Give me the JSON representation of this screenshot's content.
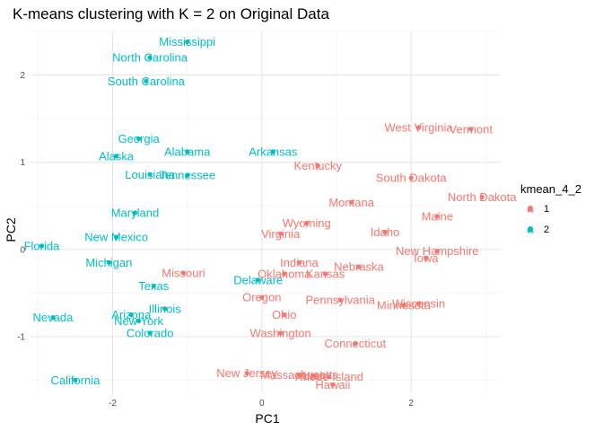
{
  "chart_data": {
    "type": "scatter",
    "title": "K-means clustering with K = 2 on Original Data",
    "xlabel": "PC1",
    "ylabel": "PC2",
    "xlim": [
      -3.1,
      3.2
    ],
    "ylim": [
      -1.65,
      2.5
    ],
    "x_ticks": [
      -2,
      0,
      2
    ],
    "y_ticks": [
      -1,
      0,
      1,
      2
    ],
    "x_tick_labels": [
      "-2",
      "0",
      "2"
    ],
    "y_tick_labels": [
      "-1",
      "0",
      "1",
      "2"
    ],
    "grid": true,
    "legend": {
      "title": "kmean_4_2",
      "position": "right",
      "entries": [
        {
          "label": "1",
          "color": "#F8766D"
        },
        {
          "label": "2",
          "color": "#00BFC4"
        }
      ]
    },
    "colors": {
      "1": "#F8766D",
      "2": "#00BFC4"
    },
    "points": [
      {
        "label": "Mississippi",
        "x": -1.0,
        "y": 2.38,
        "cluster": "2"
      },
      {
        "label": "North Carolina",
        "x": -1.5,
        "y": 2.2,
        "cluster": "2"
      },
      {
        "label": "South Carolina",
        "x": -1.55,
        "y": 1.93,
        "cluster": "2"
      },
      {
        "label": "Georgia",
        "x": -1.65,
        "y": 1.27,
        "cluster": "2"
      },
      {
        "label": "Alabama",
        "x": -1.0,
        "y": 1.12,
        "cluster": "2"
      },
      {
        "label": "Alaska",
        "x": -1.95,
        "y": 1.07,
        "cluster": "2"
      },
      {
        "label": "Arkansas",
        "x": 0.15,
        "y": 1.12,
        "cluster": "2"
      },
      {
        "label": "Louisiana",
        "x": -1.5,
        "y": 0.86,
        "cluster": "2"
      },
      {
        "label": "Tennessee",
        "x": -1.0,
        "y": 0.85,
        "cluster": "2"
      },
      {
        "label": "Maryland",
        "x": -1.7,
        "y": 0.42,
        "cluster": "2"
      },
      {
        "label": "New Mexico",
        "x": -1.95,
        "y": 0.14,
        "cluster": "2"
      },
      {
        "label": "Florida",
        "x": -2.95,
        "y": 0.04,
        "cluster": "2"
      },
      {
        "label": "Michigan",
        "x": -2.05,
        "y": -0.15,
        "cluster": "2"
      },
      {
        "label": "Texas",
        "x": -1.45,
        "y": -0.42,
        "cluster": "2"
      },
      {
        "label": "Delaware",
        "x": -0.05,
        "y": -0.35,
        "cluster": "2"
      },
      {
        "label": "Illinois",
        "x": -1.3,
        "y": -0.68,
        "cluster": "2"
      },
      {
        "label": "Arizona",
        "x": -1.75,
        "y": -0.75,
        "cluster": "2"
      },
      {
        "label": "New York",
        "x": -1.65,
        "y": -0.82,
        "cluster": "2"
      },
      {
        "label": "Nevada",
        "x": -2.8,
        "y": -0.78,
        "cluster": "2"
      },
      {
        "label": "Colorado",
        "x": -1.5,
        "y": -0.96,
        "cluster": "2"
      },
      {
        "label": "California",
        "x": -2.5,
        "y": -1.5,
        "cluster": "2"
      },
      {
        "label": "West Virginia",
        "x": 2.1,
        "y": 1.4,
        "cluster": "1"
      },
      {
        "label": "Vermont",
        "x": 2.8,
        "y": 1.38,
        "cluster": "1"
      },
      {
        "label": "Kentucky",
        "x": 0.75,
        "y": 0.96,
        "cluster": "1"
      },
      {
        "label": "South Dakota",
        "x": 2.0,
        "y": 0.82,
        "cluster": "1"
      },
      {
        "label": "North Dakota",
        "x": 2.95,
        "y": 0.6,
        "cluster": "1"
      },
      {
        "label": "Montana",
        "x": 1.2,
        "y": 0.54,
        "cluster": "1"
      },
      {
        "label": "Maine",
        "x": 2.35,
        "y": 0.38,
        "cluster": "1"
      },
      {
        "label": "Wyoming",
        "x": 0.6,
        "y": 0.3,
        "cluster": "1"
      },
      {
        "label": "Virginia",
        "x": 0.25,
        "y": 0.18,
        "cluster": "1"
      },
      {
        "label": "Idaho",
        "x": 1.65,
        "y": 0.2,
        "cluster": "1"
      },
      {
        "label": "New Hampshire",
        "x": 2.35,
        "y": -0.02,
        "cluster": "1"
      },
      {
        "label": "Iowa",
        "x": 2.2,
        "y": -0.1,
        "cluster": "1"
      },
      {
        "label": "Indiana",
        "x": 0.5,
        "y": -0.15,
        "cluster": "1"
      },
      {
        "label": "Nebraska",
        "x": 1.3,
        "y": -0.2,
        "cluster": "1"
      },
      {
        "label": "Missouri",
        "x": -1.05,
        "y": -0.27,
        "cluster": "1"
      },
      {
        "label": "Oklahoma",
        "x": 0.3,
        "y": -0.28,
        "cluster": "1"
      },
      {
        "label": "Kansas",
        "x": 0.85,
        "y": -0.28,
        "cluster": "1"
      },
      {
        "label": "Oregon",
        "x": 0.0,
        "y": -0.55,
        "cluster": "1"
      },
      {
        "label": "Pennsylvania",
        "x": 1.05,
        "y": -0.58,
        "cluster": "1"
      },
      {
        "label": "Wisconsin",
        "x": 2.1,
        "y": -0.62,
        "cluster": "1"
      },
      {
        "label": "Minnesota",
        "x": 1.9,
        "y": -0.64,
        "cluster": "1"
      },
      {
        "label": "Ohio",
        "x": 0.3,
        "y": -0.75,
        "cluster": "1"
      },
      {
        "label": "Washington",
        "x": 0.25,
        "y": -0.96,
        "cluster": "1"
      },
      {
        "label": "Connecticut",
        "x": 1.25,
        "y": -1.08,
        "cluster": "1"
      },
      {
        "label": "New Jersey",
        "x": -0.2,
        "y": -1.42,
        "cluster": "1"
      },
      {
        "label": "Massachusetts",
        "x": 0.5,
        "y": -1.44,
        "cluster": "1"
      },
      {
        "label": "Utah",
        "x": 0.7,
        "y": -1.45,
        "cluster": "1"
      },
      {
        "label": "Rhode Island",
        "x": 0.9,
        "y": -1.46,
        "cluster": "1"
      },
      {
        "label": "Hawaii",
        "x": 0.95,
        "y": -1.55,
        "cluster": "1"
      }
    ]
  }
}
